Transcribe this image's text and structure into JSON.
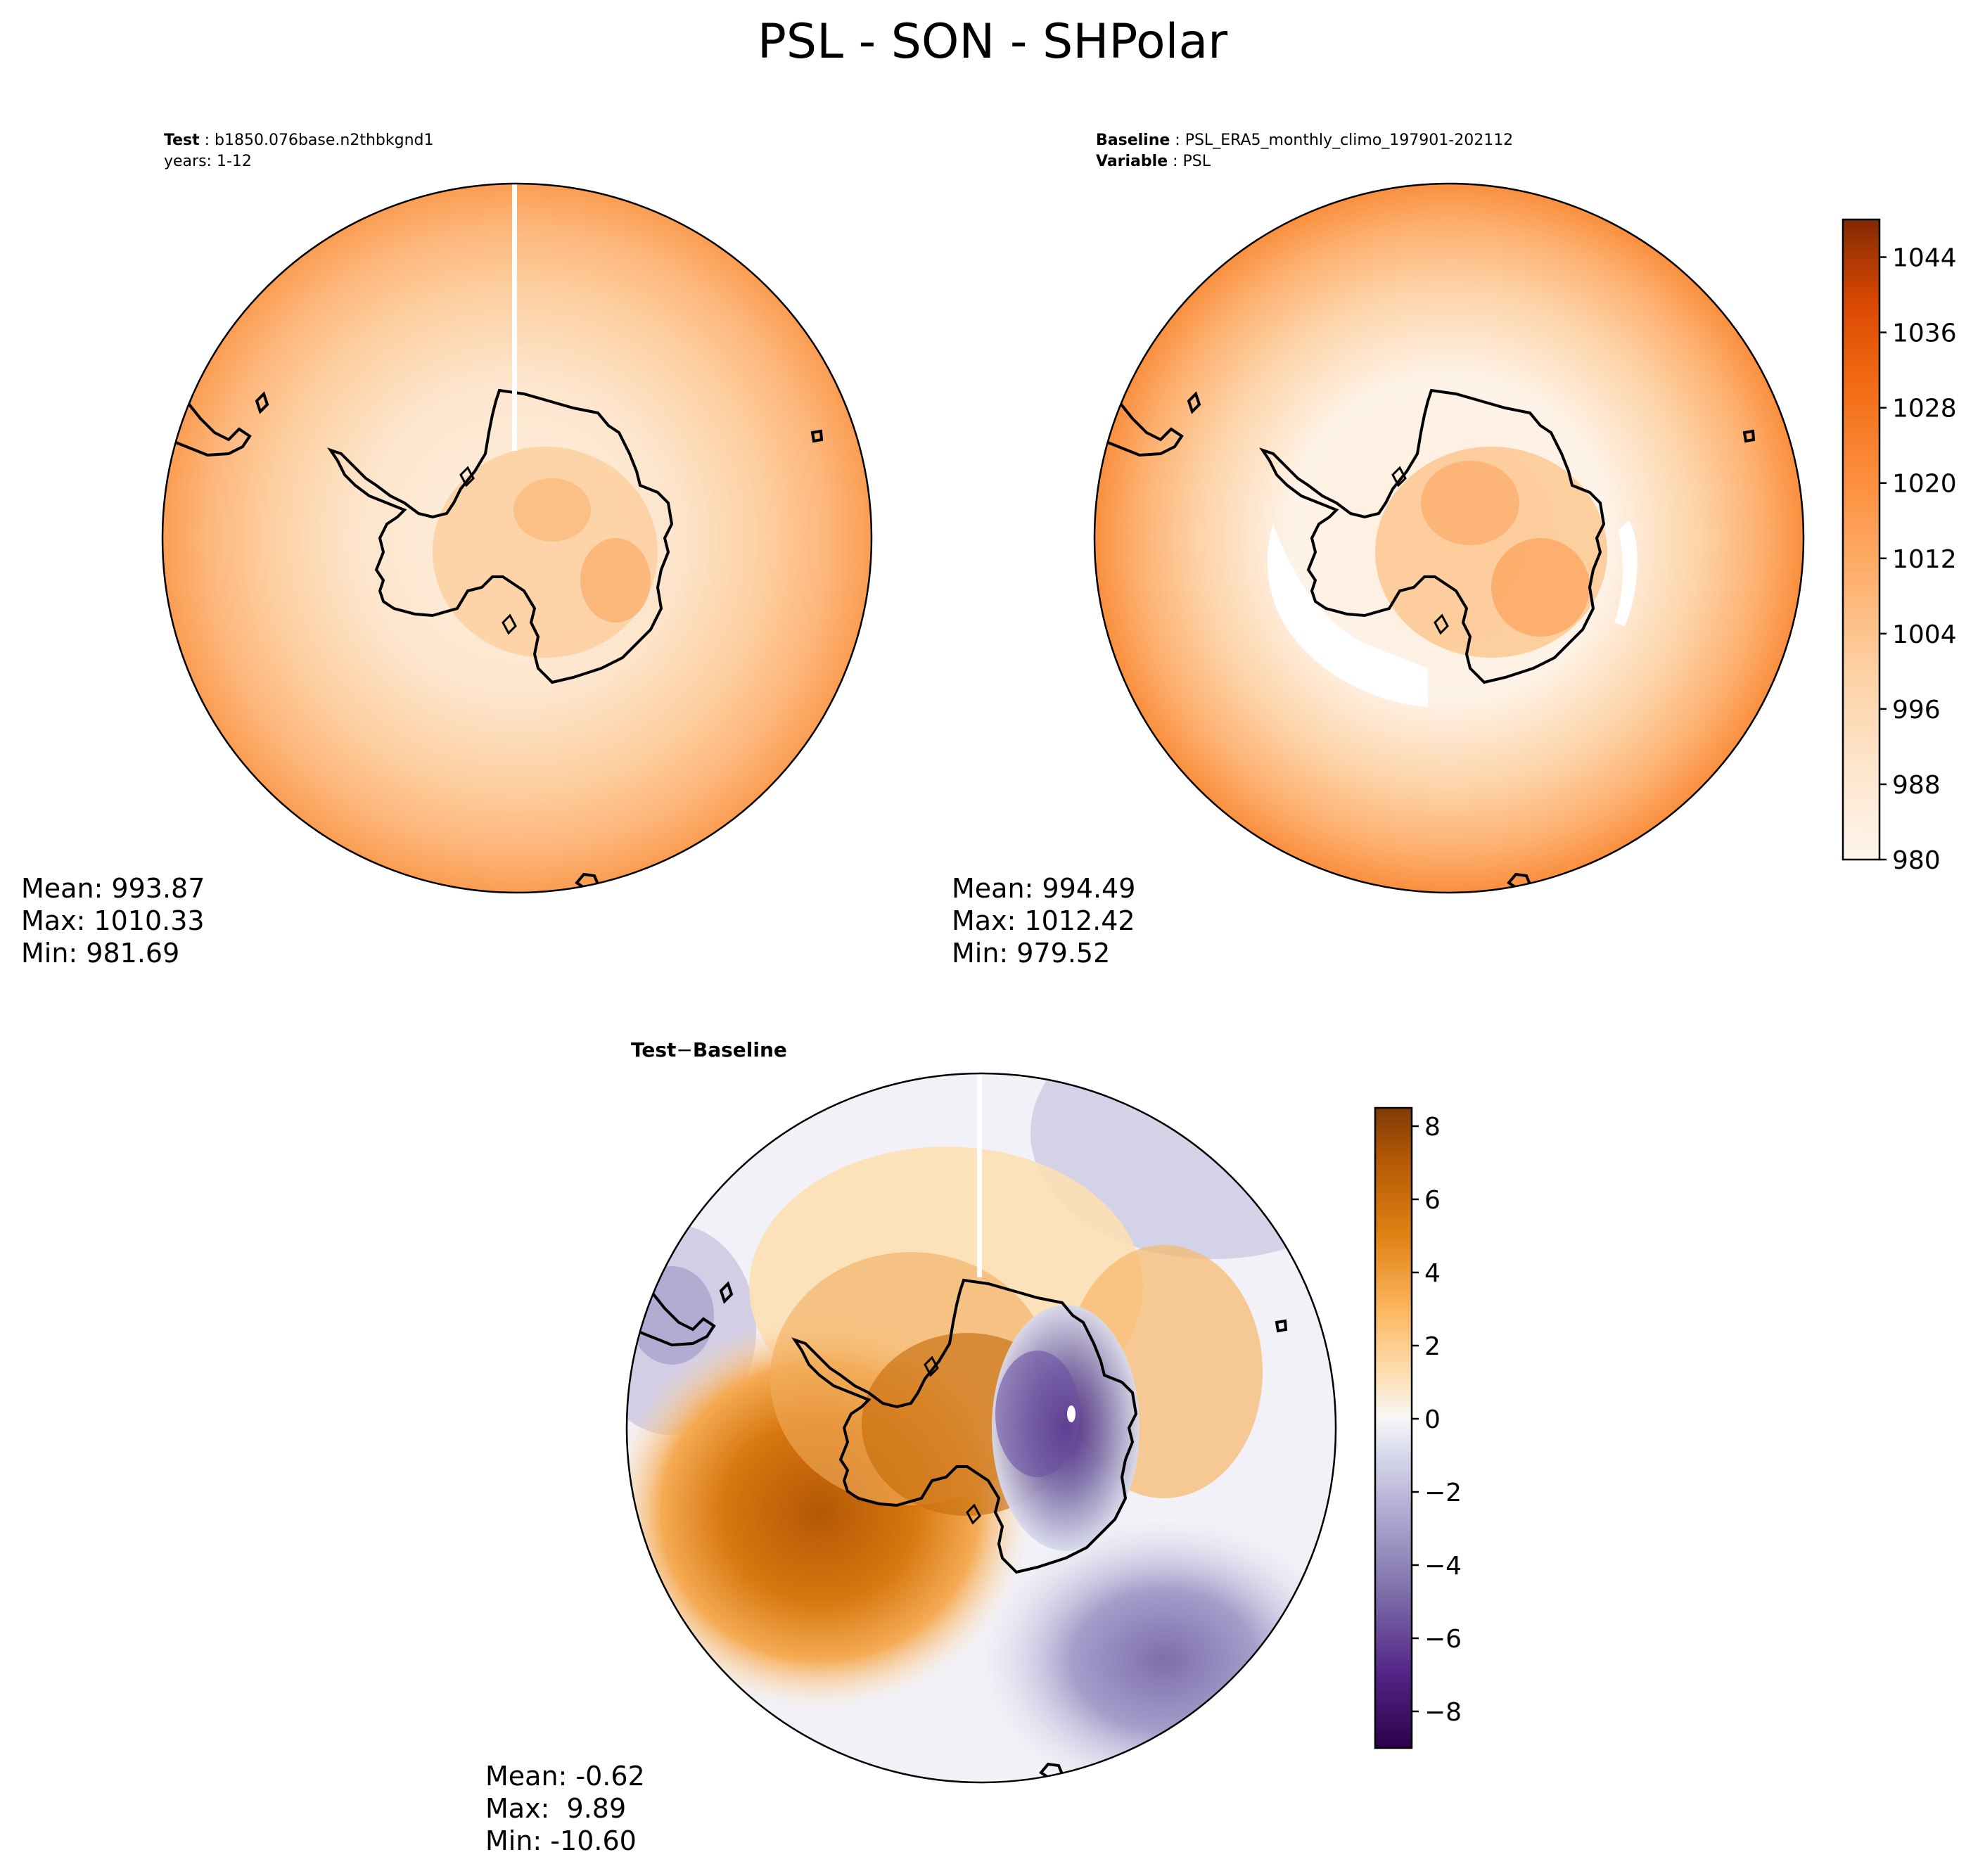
{
  "figure_title": "PSL - SON - SHPolar",
  "colors": {
    "psl_scale": [
      "#fff5eb",
      "#fee6ce",
      "#fdd0a2",
      "#fdae6b",
      "#fd8d3c",
      "#f16913",
      "#d94801",
      "#a63603",
      "#7f2704"
    ],
    "diff_scale": [
      "#2d004b",
      "#542788",
      "#8073ac",
      "#b2abd2",
      "#d8daeb",
      "#f7f7f7",
      "#fee0b6",
      "#fdb863",
      "#e08214",
      "#b35806",
      "#7f3b08"
    ],
    "coastline": "#000000",
    "missing_seam": "#ffffff"
  },
  "panels": {
    "test": {
      "header_label": "Test",
      "header_value": "b1850.076base.n2thbkgnd1",
      "header_line2": "years: 1-12",
      "stats": {
        "mean": "Mean: 993.87",
        "max": "Max: 1010.33",
        "min": "Min: 981.69"
      }
    },
    "baseline": {
      "header_label": "Baseline",
      "header_value": "PSL_ERA5_monthly_climo_197901-202112",
      "header_label2": "Variable",
      "header_value2": "PSL",
      "stats": {
        "mean": "Mean: 994.49",
        "max": "Max: 1012.42",
        "min": "Min: 979.52"
      }
    },
    "diff": {
      "header_test": "Test",
      "header_sep": "−",
      "header_base": "Baseline",
      "stats": {
        "mean": "Mean: -0.62",
        "max": "Max:  9.89",
        "min": "Min: -10.60"
      }
    }
  },
  "chart_data": [
    {
      "type": "heatmap",
      "name": "Test",
      "projection": "south-polar-stereographic",
      "variable": "PSL",
      "season": "SON",
      "value_range": [
        981.69,
        1010.33
      ],
      "mean": 993.87
    },
    {
      "type": "heatmap",
      "name": "Baseline",
      "projection": "south-polar-stereographic",
      "variable": "PSL",
      "season": "SON",
      "value_range": [
        979.52,
        1012.42
      ],
      "mean": 994.49
    },
    {
      "type": "heatmap",
      "name": "Test - Baseline",
      "projection": "south-polar-stereographic",
      "variable": "PSL difference",
      "season": "SON",
      "value_range": [
        -10.6,
        9.89
      ],
      "mean": -0.62
    }
  ],
  "colorbars": {
    "psl": {
      "range": [
        980,
        1048
      ],
      "ticks": [
        980,
        988,
        996,
        1004,
        1012,
        1020,
        1028,
        1036,
        1044
      ],
      "tick_labels": [
        "980",
        "988",
        "996",
        "1004",
        "1012",
        "1020",
        "1028",
        "1036",
        "1044"
      ]
    },
    "diff": {
      "range": [
        -9,
        8.5
      ],
      "ticks": [
        -8,
        -6,
        -4,
        -2,
        0,
        2,
        4,
        6,
        8
      ],
      "tick_labels": [
        "−8",
        "−6",
        "−4",
        "−2",
        "0",
        "2",
        "4",
        "6",
        "8"
      ]
    }
  }
}
